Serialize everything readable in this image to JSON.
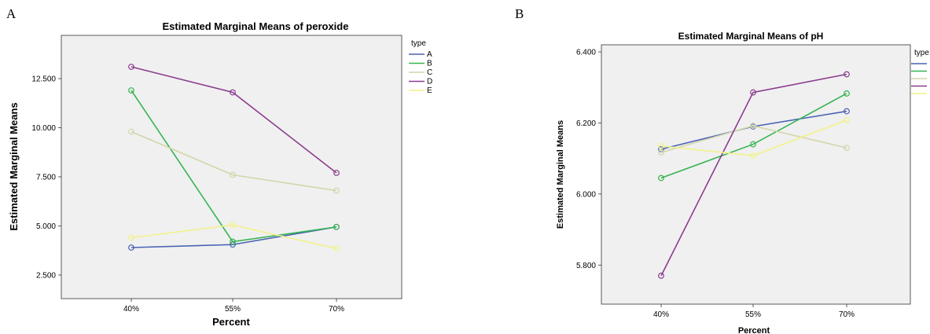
{
  "panels": {
    "a_letter": "A",
    "b_letter": "B"
  },
  "chart_data": [
    {
      "type": "line",
      "title": "Estimated Marginal Means of peroxide",
      "xlabel": "Percent",
      "ylabel": "Estimated Marginal Means",
      "categories": [
        "40%",
        "55%",
        "70%"
      ],
      "yticks": [
        "2.500",
        "5.000",
        "7.500",
        "10.000",
        "12.500"
      ],
      "ylim": [
        1.3,
        14.7
      ],
      "legend_title": "type",
      "legend_position": "right",
      "grid": false,
      "series": [
        {
          "name": "A",
          "color": "#4a62b4",
          "values": [
            3.9,
            4.05,
            4.95
          ]
        },
        {
          "name": "B",
          "color": "#37b452",
          "values": [
            11.9,
            4.2,
            4.95
          ]
        },
        {
          "name": "C",
          "color": "#d2d6a9",
          "values": [
            9.8,
            7.6,
            6.8
          ]
        },
        {
          "name": "D",
          "color": "#8b3d8e",
          "values": [
            13.1,
            11.8,
            7.7
          ]
        },
        {
          "name": "E",
          "color": "#f2f28a",
          "values": [
            4.4,
            5.05,
            3.85
          ]
        }
      ]
    },
    {
      "type": "line",
      "title": "Estimated Marginal Means of pH",
      "xlabel": "Percent",
      "ylabel": "Estimated Marginal Means",
      "categories": [
        "40%",
        "55%",
        "70%"
      ],
      "yticks": [
        "5.800",
        "6.000",
        "6.200",
        "6.400"
      ],
      "ylim": [
        5.69,
        6.42
      ],
      "legend_title": "type",
      "legend_position": "right",
      "grid": false,
      "series": [
        {
          "name": "",
          "color": "#4a62b4",
          "values": [
            6.126,
            6.19,
            6.233
          ]
        },
        {
          "name": "",
          "color": "#37b452",
          "values": [
            6.045,
            6.14,
            6.283
          ]
        },
        {
          "name": "",
          "color": "#d2d6a9",
          "values": [
            6.117,
            6.192,
            6.13
          ]
        },
        {
          "name": "",
          "color": "#8b3d8e",
          "values": [
            5.77,
            6.286,
            6.337
          ]
        },
        {
          "name": "",
          "color": "#f2f28a",
          "values": [
            6.135,
            6.108,
            6.208
          ]
        }
      ]
    }
  ]
}
